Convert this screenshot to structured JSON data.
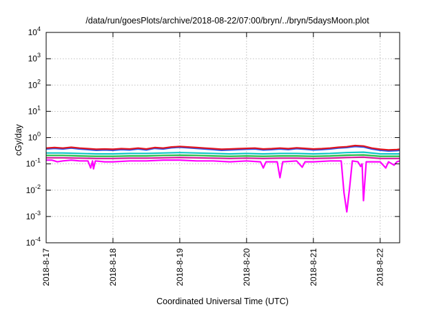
{
  "chart_data": {
    "type": "line",
    "title": "/data/run/goesPlots/archive/2018-08-22/07:00/bryn/../bryn/5daysMoon.plot",
    "xlabel": "Coordinated Universal Time (UTC)",
    "ylabel": "cGy/day",
    "yscale": "log",
    "ylim": [
      0.0001,
      10000
    ],
    "xlim": [
      "2018-08-17T00:00",
      "2018-08-22T07:00"
    ],
    "grid": true,
    "legend": "none",
    "y_ticks": [
      {
        "mant": "10",
        "exp": "-4",
        "value": 0.0001
      },
      {
        "mant": "10",
        "exp": "-3",
        "value": 0.001
      },
      {
        "mant": "10",
        "exp": "-2",
        "value": 0.01
      },
      {
        "mant": "10",
        "exp": "-1",
        "value": 0.1
      },
      {
        "mant": "10",
        "exp": "0",
        "value": 1
      },
      {
        "mant": "10",
        "exp": "1",
        "value": 10
      },
      {
        "mant": "10",
        "exp": "2",
        "value": 100
      },
      {
        "mant": "10",
        "exp": "3",
        "value": 1000
      },
      {
        "mant": "10",
        "exp": "4",
        "value": 10000
      }
    ],
    "x_ticks": [
      "2018-8-17",
      "2018-8-18",
      "2018-8-19",
      "2018-8-20",
      "2018-8-21",
      "2018-8-22"
    ],
    "series": [
      {
        "color": "#e0141e",
        "values": [
          [
            "2018-08-17T00:00",
            0.4
          ],
          [
            "2018-08-17T03:00",
            0.42
          ],
          [
            "2018-08-17T06:00",
            0.4
          ],
          [
            "2018-08-17T09:00",
            0.43
          ],
          [
            "2018-08-17T12:00",
            0.4
          ],
          [
            "2018-08-17T15:00",
            0.38
          ],
          [
            "2018-08-17T18:00",
            0.36
          ],
          [
            "2018-08-17T21:00",
            0.37
          ],
          [
            "2018-08-18T00:00",
            0.36
          ],
          [
            "2018-08-18T03:00",
            0.38
          ],
          [
            "2018-08-18T06:00",
            0.37
          ],
          [
            "2018-08-18T09:00",
            0.4
          ],
          [
            "2018-08-18T12:00",
            0.37
          ],
          [
            "2018-08-18T15:00",
            0.42
          ],
          [
            "2018-08-18T18:00",
            0.4
          ],
          [
            "2018-08-18T21:00",
            0.44
          ],
          [
            "2018-08-19T00:00",
            0.46
          ],
          [
            "2018-08-19T03:00",
            0.44
          ],
          [
            "2018-08-19T06:00",
            0.42
          ],
          [
            "2018-08-19T09:00",
            0.4
          ],
          [
            "2018-08-19T12:00",
            0.38
          ],
          [
            "2018-08-19T15:00",
            0.36
          ],
          [
            "2018-08-19T18:00",
            0.37
          ],
          [
            "2018-08-19T21:00",
            0.38
          ],
          [
            "2018-08-20T00:00",
            0.39
          ],
          [
            "2018-08-20T03:00",
            0.4
          ],
          [
            "2018-08-20T06:00",
            0.37
          ],
          [
            "2018-08-20T09:00",
            0.38
          ],
          [
            "2018-08-20T12:00",
            0.4
          ],
          [
            "2018-08-20T15:00",
            0.38
          ],
          [
            "2018-08-20T18:00",
            0.41
          ],
          [
            "2018-08-20T21:00",
            0.39
          ],
          [
            "2018-08-21T00:00",
            0.37
          ],
          [
            "2018-08-21T03:00",
            0.38
          ],
          [
            "2018-08-21T06:00",
            0.4
          ],
          [
            "2018-08-21T09:00",
            0.43
          ],
          [
            "2018-08-21T12:00",
            0.45
          ],
          [
            "2018-08-21T15:00",
            0.5
          ],
          [
            "2018-08-21T18:00",
            0.48
          ],
          [
            "2018-08-21T21:00",
            0.4
          ],
          [
            "2018-08-22T00:00",
            0.36
          ],
          [
            "2018-08-22T03:00",
            0.34
          ],
          [
            "2018-08-22T06:00",
            0.35
          ],
          [
            "2018-08-22T07:00",
            0.36
          ]
        ]
      },
      {
        "color": "#2255ee",
        "values": [
          [
            "2018-08-17T00:00",
            0.37
          ],
          [
            "2018-08-17T03:00",
            0.39
          ],
          [
            "2018-08-17T06:00",
            0.37
          ],
          [
            "2018-08-17T09:00",
            0.4
          ],
          [
            "2018-08-17T12:00",
            0.37
          ],
          [
            "2018-08-17T15:00",
            0.35
          ],
          [
            "2018-08-17T18:00",
            0.33
          ],
          [
            "2018-08-17T21:00",
            0.34
          ],
          [
            "2018-08-18T00:00",
            0.33
          ],
          [
            "2018-08-18T03:00",
            0.35
          ],
          [
            "2018-08-18T06:00",
            0.34
          ],
          [
            "2018-08-18T09:00",
            0.37
          ],
          [
            "2018-08-18T12:00",
            0.34
          ],
          [
            "2018-08-18T15:00",
            0.39
          ],
          [
            "2018-08-18T18:00",
            0.37
          ],
          [
            "2018-08-18T21:00",
            0.41
          ],
          [
            "2018-08-19T00:00",
            0.43
          ],
          [
            "2018-08-19T03:00",
            0.41
          ],
          [
            "2018-08-19T06:00",
            0.39
          ],
          [
            "2018-08-19T09:00",
            0.37
          ],
          [
            "2018-08-19T12:00",
            0.35
          ],
          [
            "2018-08-19T15:00",
            0.33
          ],
          [
            "2018-08-19T18:00",
            0.34
          ],
          [
            "2018-08-19T21:00",
            0.35
          ],
          [
            "2018-08-20T00:00",
            0.36
          ],
          [
            "2018-08-20T03:00",
            0.37
          ],
          [
            "2018-08-20T06:00",
            0.34
          ],
          [
            "2018-08-20T09:00",
            0.35
          ],
          [
            "2018-08-20T12:00",
            0.37
          ],
          [
            "2018-08-20T15:00",
            0.35
          ],
          [
            "2018-08-20T18:00",
            0.38
          ],
          [
            "2018-08-20T21:00",
            0.36
          ],
          [
            "2018-08-21T00:00",
            0.34
          ],
          [
            "2018-08-21T03:00",
            0.35
          ],
          [
            "2018-08-21T06:00",
            0.37
          ],
          [
            "2018-08-21T09:00",
            0.4
          ],
          [
            "2018-08-21T12:00",
            0.42
          ],
          [
            "2018-08-21T15:00",
            0.46
          ],
          [
            "2018-08-21T18:00",
            0.44
          ],
          [
            "2018-08-21T21:00",
            0.37
          ],
          [
            "2018-08-22T00:00",
            0.33
          ],
          [
            "2018-08-22T03:00",
            0.31
          ],
          [
            "2018-08-22T06:00",
            0.32
          ],
          [
            "2018-08-22T07:00",
            0.33
          ]
        ]
      },
      {
        "color": "#11c7c7",
        "values": [
          [
            "2018-08-17T00:00",
            0.26
          ],
          [
            "2018-08-17T06:00",
            0.26
          ],
          [
            "2018-08-17T12:00",
            0.25
          ],
          [
            "2018-08-17T18:00",
            0.24
          ],
          [
            "2018-08-18T00:00",
            0.24
          ],
          [
            "2018-08-18T06:00",
            0.25
          ],
          [
            "2018-08-18T12:00",
            0.25
          ],
          [
            "2018-08-18T18:00",
            0.26
          ],
          [
            "2018-08-19T00:00",
            0.27
          ],
          [
            "2018-08-19T06:00",
            0.26
          ],
          [
            "2018-08-19T12:00",
            0.25
          ],
          [
            "2018-08-19T18:00",
            0.24
          ],
          [
            "2018-08-20T00:00",
            0.25
          ],
          [
            "2018-08-20T06:00",
            0.24
          ],
          [
            "2018-08-20T12:00",
            0.25
          ],
          [
            "2018-08-20T18:00",
            0.25
          ],
          [
            "2018-08-21T00:00",
            0.24
          ],
          [
            "2018-08-21T06:00",
            0.25
          ],
          [
            "2018-08-21T12:00",
            0.27
          ],
          [
            "2018-08-21T18:00",
            0.28
          ],
          [
            "2018-08-22T00:00",
            0.24
          ],
          [
            "2018-08-22T07:00",
            0.24
          ]
        ]
      },
      {
        "color": "#22bb44",
        "values": [
          [
            "2018-08-17T00:00",
            0.21
          ],
          [
            "2018-08-17T06:00",
            0.21
          ],
          [
            "2018-08-17T12:00",
            0.2
          ],
          [
            "2018-08-17T18:00",
            0.195
          ],
          [
            "2018-08-18T00:00",
            0.195
          ],
          [
            "2018-08-18T06:00",
            0.2
          ],
          [
            "2018-08-18T12:00",
            0.2
          ],
          [
            "2018-08-18T18:00",
            0.21
          ],
          [
            "2018-08-19T00:00",
            0.215
          ],
          [
            "2018-08-19T06:00",
            0.21
          ],
          [
            "2018-08-19T12:00",
            0.2
          ],
          [
            "2018-08-19T18:00",
            0.195
          ],
          [
            "2018-08-20T00:00",
            0.2
          ],
          [
            "2018-08-20T06:00",
            0.195
          ],
          [
            "2018-08-20T12:00",
            0.2
          ],
          [
            "2018-08-20T18:00",
            0.2
          ],
          [
            "2018-08-21T00:00",
            0.195
          ],
          [
            "2018-08-21T06:00",
            0.2
          ],
          [
            "2018-08-21T12:00",
            0.215
          ],
          [
            "2018-08-21T18:00",
            0.22
          ],
          [
            "2018-08-22T00:00",
            0.195
          ],
          [
            "2018-08-22T07:00",
            0.195
          ]
        ]
      },
      {
        "color": "#d6179c",
        "values": [
          [
            "2018-08-17T00:00",
            0.17
          ],
          [
            "2018-08-17T06:00",
            0.17
          ],
          [
            "2018-08-17T12:00",
            0.165
          ],
          [
            "2018-08-17T18:00",
            0.16
          ],
          [
            "2018-08-18T00:00",
            0.16
          ],
          [
            "2018-08-18T06:00",
            0.165
          ],
          [
            "2018-08-18T12:00",
            0.165
          ],
          [
            "2018-08-18T18:00",
            0.17
          ],
          [
            "2018-08-19T00:00",
            0.175
          ],
          [
            "2018-08-19T06:00",
            0.17
          ],
          [
            "2018-08-19T12:00",
            0.165
          ],
          [
            "2018-08-19T18:00",
            0.16
          ],
          [
            "2018-08-20T00:00",
            0.165
          ],
          [
            "2018-08-20T06:00",
            0.16
          ],
          [
            "2018-08-20T12:00",
            0.165
          ],
          [
            "2018-08-20T18:00",
            0.165
          ],
          [
            "2018-08-21T00:00",
            0.16
          ],
          [
            "2018-08-21T06:00",
            0.165
          ],
          [
            "2018-08-21T12:00",
            0.175
          ],
          [
            "2018-08-21T18:00",
            0.18
          ],
          [
            "2018-08-22T00:00",
            0.16
          ],
          [
            "2018-08-22T07:00",
            0.16
          ]
        ]
      },
      {
        "color": "#ff00ff",
        "values": [
          [
            "2018-08-17T00:00",
            0.14
          ],
          [
            "2018-08-17T02:00",
            0.14
          ],
          [
            "2018-08-17T04:00",
            0.12
          ],
          [
            "2018-08-17T06:00",
            0.13
          ],
          [
            "2018-08-17T09:00",
            0.14
          ],
          [
            "2018-08-17T12:00",
            0.13
          ],
          [
            "2018-08-17T15:00",
            0.13
          ],
          [
            "2018-08-17T16:00",
            0.07
          ],
          [
            "2018-08-17T16:40",
            0.13
          ],
          [
            "2018-08-17T17:00",
            0.065
          ],
          [
            "2018-08-17T17:40",
            0.13
          ],
          [
            "2018-08-17T21:00",
            0.12
          ],
          [
            "2018-08-18T00:00",
            0.12
          ],
          [
            "2018-08-18T06:00",
            0.13
          ],
          [
            "2018-08-18T12:00",
            0.13
          ],
          [
            "2018-08-18T18:00",
            0.14
          ],
          [
            "2018-08-19T00:00",
            0.14
          ],
          [
            "2018-08-19T06:00",
            0.13
          ],
          [
            "2018-08-19T12:00",
            0.13
          ],
          [
            "2018-08-19T18:00",
            0.12
          ],
          [
            "2018-08-20T00:00",
            0.13
          ],
          [
            "2018-08-20T05:00",
            0.12
          ],
          [
            "2018-08-20T06:00",
            0.07
          ],
          [
            "2018-08-20T07:00",
            0.12
          ],
          [
            "2018-08-20T11:00",
            0.12
          ],
          [
            "2018-08-20T12:00",
            0.03
          ],
          [
            "2018-08-20T13:00",
            0.12
          ],
          [
            "2018-08-20T18:00",
            0.13
          ],
          [
            "2018-08-20T20:00",
            0.075
          ],
          [
            "2018-08-20T21:00",
            0.12
          ],
          [
            "2018-08-21T00:00",
            0.12
          ],
          [
            "2018-08-21T06:00",
            0.13
          ],
          [
            "2018-08-21T10:00",
            0.13
          ],
          [
            "2018-08-21T11:00",
            0.008
          ],
          [
            "2018-08-21T12:00",
            0.0015
          ],
          [
            "2018-08-21T13:00",
            0.012
          ],
          [
            "2018-08-21T14:00",
            0.13
          ],
          [
            "2018-08-21T16:00",
            0.12
          ],
          [
            "2018-08-21T17:00",
            0.08
          ],
          [
            "2018-08-21T17:30",
            0.1
          ],
          [
            "2018-08-21T18:00",
            0.004
          ],
          [
            "2018-08-21T19:00",
            0.12
          ],
          [
            "2018-08-21T21:00",
            0.12
          ],
          [
            "2018-08-22T00:00",
            0.12
          ],
          [
            "2018-08-22T02:00",
            0.07
          ],
          [
            "2018-08-22T03:00",
            0.12
          ],
          [
            "2018-08-22T05:00",
            0.09
          ],
          [
            "2018-08-22T06:00",
            0.12
          ],
          [
            "2018-08-22T07:00",
            0.13
          ]
        ]
      }
    ]
  }
}
